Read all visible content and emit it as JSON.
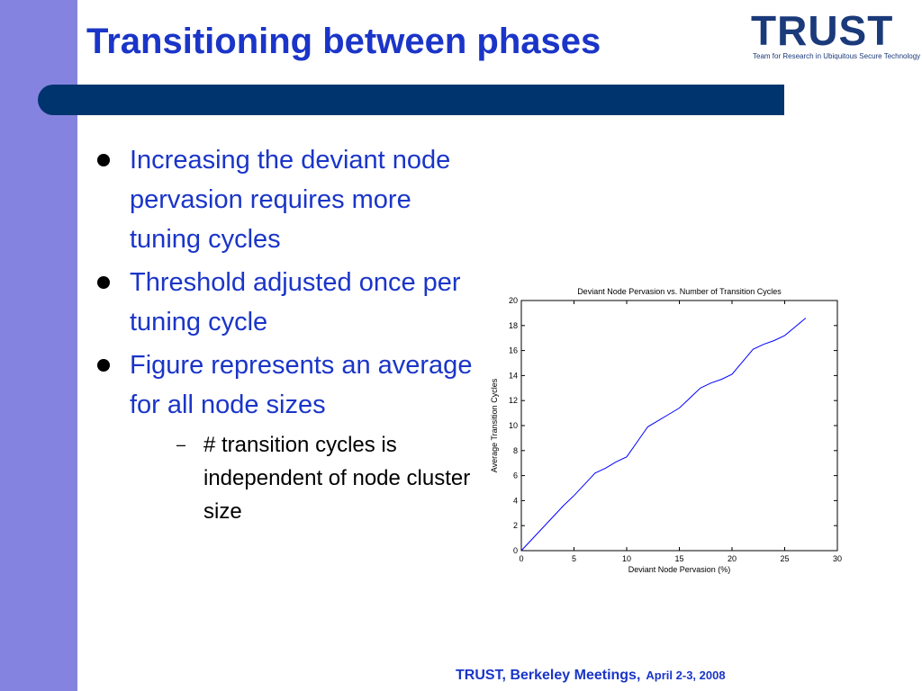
{
  "slide": {
    "title": "Transitioning between phases",
    "bullets": [
      {
        "text": "Increasing the deviant node pervasion requires more tuning cycles"
      },
      {
        "text": "Threshold adjusted once per tuning cycle"
      },
      {
        "text": "Figure represents an average for all node sizes"
      }
    ],
    "sub_bullet": "# transition cycles is independent of node cluster size",
    "sub_marker": "–",
    "footer_org": "TRUST, Berkeley Meetings,",
    "footer_date": "April 2-3, 2008"
  },
  "logo": {
    "text": "TRUST",
    "tagline": "Team for Research in Ubiquitous Secure Technology"
  },
  "colors": {
    "title": "#1a35c8",
    "sidebar": "#8484e0",
    "header_bar": "#00346e",
    "line": "#0000ff"
  },
  "chart_data": {
    "type": "line",
    "title": "Deviant Node Pervasion vs. Number of Transition Cycles",
    "xlabel": "Deviant Node Pervasion (%)",
    "ylabel": "Average Transition Cycles",
    "xlim": [
      0,
      30
    ],
    "ylim": [
      0,
      20
    ],
    "xticks": [
      0,
      5,
      10,
      15,
      20,
      25,
      30
    ],
    "yticks": [
      0,
      2,
      4,
      6,
      8,
      10,
      12,
      14,
      16,
      18,
      20
    ],
    "grid": false,
    "series": [
      {
        "x": [
          0,
          1,
          2,
          3,
          4,
          5,
          6,
          7,
          8,
          9,
          10,
          11,
          12,
          13,
          14,
          15,
          16,
          17,
          18,
          19,
          20,
          21,
          22,
          23,
          24,
          25,
          26,
          27
        ],
        "y": [
          0,
          0.9,
          1.8,
          2.7,
          3.6,
          4.4,
          5.3,
          6.2,
          6.6,
          7.1,
          7.5,
          8.7,
          9.9,
          10.4,
          10.9,
          11.4,
          12.2,
          13.0,
          13.4,
          13.7,
          14.1,
          15.1,
          16.1,
          16.5,
          16.8,
          17.2,
          17.9,
          18.6
        ]
      }
    ]
  }
}
